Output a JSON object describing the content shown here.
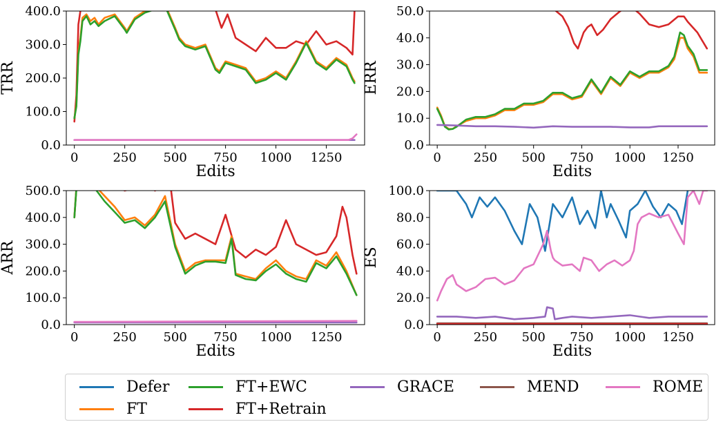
{
  "colors": {
    "Defer": "#1f77b4",
    "FT": "#ff7f0e",
    "FT+EWC": "#2ca02c",
    "FT+Retrain": "#d62728",
    "GRACE": "#9467bd",
    "MEND": "#8c564b",
    "ROME": "#e377c2"
  },
  "legend": {
    "labels": [
      "Defer",
      "FT",
      "FT+EWC",
      "FT+Retrain",
      "GRACE",
      "MEND",
      "ROME"
    ]
  },
  "chart_data": [
    {
      "type": "line",
      "xlabel": "Edits",
      "ylabel": "TRR",
      "xlim": [
        -40,
        1440
      ],
      "ylim": [
        0,
        400
      ],
      "xticks": [
        "0",
        "250",
        "500",
        "750",
        "1000",
        "1250"
      ],
      "yticks": [
        "0.0",
        "100.0",
        "200.0",
        "300.0",
        "400.0"
      ],
      "series": [
        {
          "name": "FT+Retrain",
          "x": [
            0,
            10,
            20,
            30,
            40,
            60,
            80,
            100,
            150,
            200,
            250,
            300,
            350,
            400,
            450,
            500,
            550,
            600,
            650,
            700,
            730,
            760,
            800,
            850,
            900,
            950,
            1000,
            1050,
            1100,
            1150,
            1200,
            1250,
            1300,
            1350,
            1380,
            1390
          ],
          "y": [
            70,
            150,
            360,
            400,
            430,
            450,
            430,
            450,
            440,
            430,
            460,
            430,
            440,
            420,
            440,
            440,
            450,
            430,
            420,
            405,
            350,
            390,
            320,
            300,
            280,
            320,
            290,
            290,
            310,
            300,
            340,
            300,
            310,
            290,
            270,
            400
          ]
        },
        {
          "name": "FT",
          "x": [
            0,
            10,
            20,
            30,
            40,
            60,
            80,
            100,
            120,
            150,
            200,
            250,
            260,
            300,
            350,
            400,
            450,
            500,
            520,
            550,
            600,
            650,
            700,
            720,
            750,
            800,
            850,
            900,
            950,
            1000,
            1050,
            1100,
            1150,
            1200,
            1250,
            1300,
            1350,
            1380,
            1390
          ],
          "y": [
            80,
            120,
            280,
            320,
            380,
            390,
            370,
            380,
            360,
            380,
            390,
            350,
            340,
            380,
            400,
            410,
            420,
            350,
            320,
            300,
            290,
            300,
            230,
            220,
            250,
            240,
            230,
            190,
            200,
            220,
            200,
            250,
            310,
            250,
            230,
            260,
            240,
            200,
            190
          ]
        },
        {
          "name": "FT+EWC",
          "x": [
            0,
            10,
            20,
            30,
            40,
            60,
            80,
            100,
            120,
            150,
            200,
            250,
            260,
            300,
            350,
            400,
            450,
            500,
            520,
            550,
            600,
            650,
            700,
            720,
            750,
            800,
            850,
            900,
            950,
            1000,
            1050,
            1100,
            1150,
            1200,
            1250,
            1300,
            1350,
            1380,
            1390
          ],
          "y": [
            80,
            115,
            270,
            310,
            370,
            385,
            360,
            370,
            355,
            370,
            385,
            345,
            335,
            375,
            395,
            405,
            415,
            345,
            315,
            295,
            285,
            295,
            225,
            215,
            245,
            235,
            225,
            185,
            195,
            215,
            195,
            245,
            305,
            245,
            225,
            255,
            235,
            195,
            185
          ]
        },
        {
          "name": "GRACE",
          "x": [
            0,
            1390
          ],
          "y": [
            15,
            15
          ]
        },
        {
          "name": "ROME",
          "x": [
            0,
            1360,
            1380,
            1400
          ],
          "y": [
            15,
            15,
            20,
            32
          ]
        }
      ]
    },
    {
      "type": "line",
      "xlabel": "Edits",
      "ylabel": "ERR",
      "xlim": [
        -40,
        1440
      ],
      "ylim": [
        0,
        50
      ],
      "xticks": [
        "0",
        "250",
        "500",
        "750",
        "1000",
        "1250"
      ],
      "yticks": [
        "0.0",
        "10.0",
        "20.0",
        "30.0",
        "40.0",
        "50.0"
      ],
      "series": [
        {
          "name": "FT+Retrain",
          "x": [
            570,
            600,
            650,
            680,
            710,
            730,
            760,
            780,
            800,
            830,
            860,
            900,
            950,
            1000,
            1050,
            1100,
            1150,
            1200,
            1250,
            1280,
            1300,
            1350,
            1400
          ],
          "y": [
            52,
            51,
            48,
            44,
            38,
            36,
            42,
            44,
            45,
            41,
            43,
            47,
            50,
            52,
            49,
            45,
            44,
            45,
            48,
            48,
            46,
            42,
            36
          ]
        },
        {
          "name": "FT",
          "x": [
            0,
            20,
            40,
            60,
            80,
            100,
            150,
            200,
            250,
            300,
            350,
            400,
            450,
            500,
            550,
            600,
            650,
            700,
            750,
            800,
            850,
            900,
            950,
            1000,
            1050,
            1100,
            1150,
            1200,
            1230,
            1260,
            1280,
            1300,
            1330,
            1360,
            1400
          ],
          "y": [
            14,
            11,
            7,
            6,
            6,
            7,
            9,
            10,
            10,
            11,
            13,
            13,
            15,
            15,
            16,
            19,
            19,
            17,
            18,
            24,
            19,
            25,
            22,
            27,
            25,
            27,
            27,
            29,
            32,
            40,
            40,
            36,
            33,
            27,
            27
          ]
        },
        {
          "name": "FT+EWC",
          "x": [
            0,
            20,
            40,
            60,
            80,
            100,
            150,
            200,
            250,
            300,
            350,
            400,
            450,
            500,
            550,
            600,
            650,
            700,
            750,
            800,
            850,
            900,
            950,
            1000,
            1050,
            1100,
            1150,
            1200,
            1230,
            1260,
            1280,
            1300,
            1330,
            1360,
            1400
          ],
          "y": [
            13.5,
            10.5,
            6.8,
            5.8,
            6,
            6.8,
            9.5,
            10.5,
            10.5,
            11.5,
            13.5,
            13.5,
            15.5,
            15.5,
            16.5,
            19.5,
            19.5,
            17.5,
            18.5,
            24.5,
            19.5,
            25.5,
            22.5,
            27.5,
            25.5,
            27.5,
            27.5,
            29.5,
            33,
            42,
            41,
            37,
            34,
            28,
            28
          ]
        },
        {
          "name": "GRACE",
          "x": [
            0,
            100,
            200,
            300,
            400,
            500,
            600,
            700,
            800,
            900,
            1000,
            1100,
            1150,
            1200,
            1300,
            1400
          ],
          "y": [
            7.5,
            7.3,
            7,
            7,
            6.8,
            6.5,
            7,
            6.8,
            6.8,
            6.8,
            6.6,
            6.6,
            7,
            7,
            7,
            7
          ]
        }
      ]
    },
    {
      "type": "line",
      "xlabel": "Edits",
      "ylabel": "ARR",
      "xlim": [
        -40,
        1440
      ],
      "ylim": [
        0,
        500
      ],
      "xticks": [
        "0",
        "250",
        "500",
        "750",
        "1000",
        "1250"
      ],
      "yticks": [
        "0.0",
        "100.0",
        "200.0",
        "300.0",
        "400.0",
        "500.0"
      ],
      "series": [
        {
          "name": "FT+Retrain",
          "x": [
            0,
            10,
            20,
            100,
            150,
            200,
            250,
            300,
            350,
            400,
            450,
            480,
            500,
            550,
            600,
            650,
            700,
            750,
            800,
            850,
            900,
            950,
            1000,
            1050,
            1100,
            1150,
            1200,
            1250,
            1300,
            1330,
            1350,
            1380,
            1400
          ],
          "y": [
            400,
            510,
            540,
            560,
            540,
            520,
            500,
            510,
            530,
            500,
            520,
            500,
            380,
            320,
            340,
            320,
            300,
            410,
            280,
            250,
            280,
            260,
            290,
            390,
            300,
            280,
            260,
            270,
            330,
            440,
            400,
            260,
            190
          ]
        },
        {
          "name": "FT",
          "x": [
            0,
            10,
            100,
            150,
            200,
            250,
            300,
            350,
            400,
            450,
            500,
            550,
            600,
            650,
            700,
            750,
            780,
            800,
            850,
            900,
            950,
            1000,
            1050,
            1100,
            1150,
            1200,
            1250,
            1300,
            1350,
            1400
          ],
          "y": [
            400,
            510,
            520,
            480,
            440,
            390,
            400,
            370,
            410,
            480,
            300,
            200,
            230,
            240,
            240,
            240,
            330,
            190,
            180,
            170,
            210,
            240,
            200,
            180,
            170,
            240,
            220,
            270,
            200,
            110
          ]
        },
        {
          "name": "FT+EWC",
          "x": [
            0,
            10,
            100,
            150,
            200,
            250,
            300,
            350,
            400,
            450,
            500,
            550,
            600,
            650,
            700,
            750,
            780,
            800,
            850,
            900,
            950,
            1000,
            1050,
            1100,
            1150,
            1200,
            1250,
            1300,
            1350,
            1400
          ],
          "y": [
            400,
            505,
            510,
            460,
            420,
            380,
            390,
            360,
            400,
            460,
            290,
            190,
            220,
            235,
            235,
            230,
            320,
            185,
            170,
            165,
            200,
            225,
            190,
            170,
            160,
            230,
            210,
            255,
            190,
            110
          ]
        },
        {
          "name": "GRACE",
          "x": [
            0,
            1400
          ],
          "y": [
            8,
            8
          ]
        },
        {
          "name": "ROME",
          "x": [
            0,
            700,
            1400
          ],
          "y": [
            10,
            12,
            14
          ]
        }
      ]
    },
    {
      "type": "line",
      "xlabel": "Edits",
      "ylabel": "ES",
      "xlim": [
        -40,
        1440
      ],
      "ylim": [
        0,
        100
      ],
      "xticks": [
        "0",
        "250",
        "500",
        "750",
        "1000",
        "1250"
      ],
      "yticks": [
        "0.0",
        "20.0",
        "40.0",
        "60.0",
        "80.0",
        "100.0"
      ],
      "series": [
        {
          "name": "Defer",
          "x": [
            0,
            100,
            150,
            180,
            220,
            260,
            300,
            350,
            400,
            440,
            480,
            520,
            560,
            600,
            650,
            700,
            740,
            780,
            820,
            850,
            880,
            900,
            940,
            980,
            1000,
            1040,
            1080,
            1120,
            1160,
            1200,
            1240,
            1270,
            1300
          ],
          "y": [
            100,
            100,
            90,
            80,
            95,
            88,
            95,
            85,
            70,
            60,
            90,
            80,
            55,
            90,
            80,
            95,
            75,
            85,
            72,
            100,
            80,
            90,
            78,
            65,
            85,
            90,
            100,
            88,
            80,
            90,
            85,
            75,
            100
          ]
        },
        {
          "name": "ROME",
          "x": [
            0,
            20,
            50,
            80,
            100,
            150,
            200,
            250,
            300,
            350,
            400,
            450,
            500,
            550,
            570,
            590,
            600,
            610,
            650,
            700,
            740,
            760,
            800,
            840,
            880,
            920,
            960,
            1000,
            1020,
            1040,
            1060,
            1100,
            1150,
            1200,
            1250,
            1280,
            1300,
            1330,
            1360,
            1380,
            1400
          ],
          "y": [
            18,
            25,
            34,
            37,
            30,
            25,
            28,
            34,
            35,
            30,
            33,
            42,
            45,
            60,
            70,
            55,
            50,
            48,
            44,
            45,
            40,
            50,
            48,
            40,
            45,
            48,
            44,
            48,
            55,
            75,
            80,
            83,
            80,
            82,
            68,
            60,
            95,
            100,
            90,
            100,
            100
          ]
        },
        {
          "name": "GRACE",
          "x": [
            0,
            100,
            200,
            300,
            400,
            500,
            560,
            570,
            600,
            610,
            650,
            700,
            800,
            900,
            1000,
            1050,
            1100,
            1200,
            1300,
            1400
          ],
          "y": [
            6,
            6,
            5,
            6,
            4,
            5,
            6,
            13,
            12,
            4,
            5,
            6,
            5,
            6,
            7,
            6,
            5,
            6,
            6,
            6
          ]
        },
        {
          "name": "MEND",
          "x": [
            0,
            1400
          ],
          "y": [
            1,
            1
          ]
        },
        {
          "name": "FT+Retrain",
          "x": [
            0,
            1400
          ],
          "y": [
            0.5,
            0.5
          ]
        }
      ]
    }
  ]
}
